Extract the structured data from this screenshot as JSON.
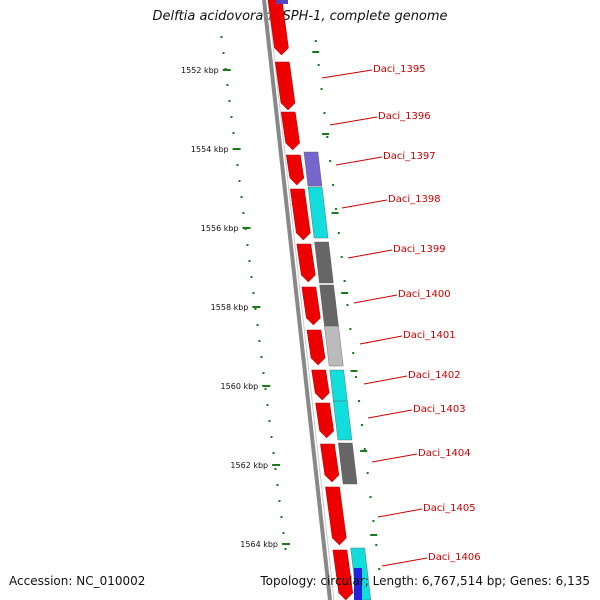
{
  "header": {
    "title": "Delftia acidovorans SPH-1, complete genome"
  },
  "footer": {
    "accession": "Accession: NC_010002",
    "topology": "Topology: circular; Length: 6,767,514 bp; Genes: 6,135"
  },
  "ticks": [
    "1552 kbp",
    "1554 kbp",
    "1556 kbp",
    "1558 kbp",
    "1560 kbp",
    "1562 kbp",
    "1564 kbp"
  ],
  "genes": [
    "Daci_1395",
    "Daci_1396",
    "Daci_1397",
    "Daci_1398",
    "Daci_1399",
    "Daci_1400",
    "Daci_1401",
    "Daci_1402",
    "Daci_1403",
    "Daci_1404",
    "Daci_1405",
    "Daci_1406"
  ],
  "colors": {
    "forward_cds": "#ee0000",
    "cog_purple": "#7766cc",
    "cog_cyan": "#11dddd",
    "cog_gray": "#666666",
    "cog_lightgray": "#bbbbbb",
    "backbone": "#888888",
    "gc_dots": "#1a7a1a",
    "label": "#cc0000"
  },
  "icons": {
    "feature": "gene-arrow-icon"
  }
}
